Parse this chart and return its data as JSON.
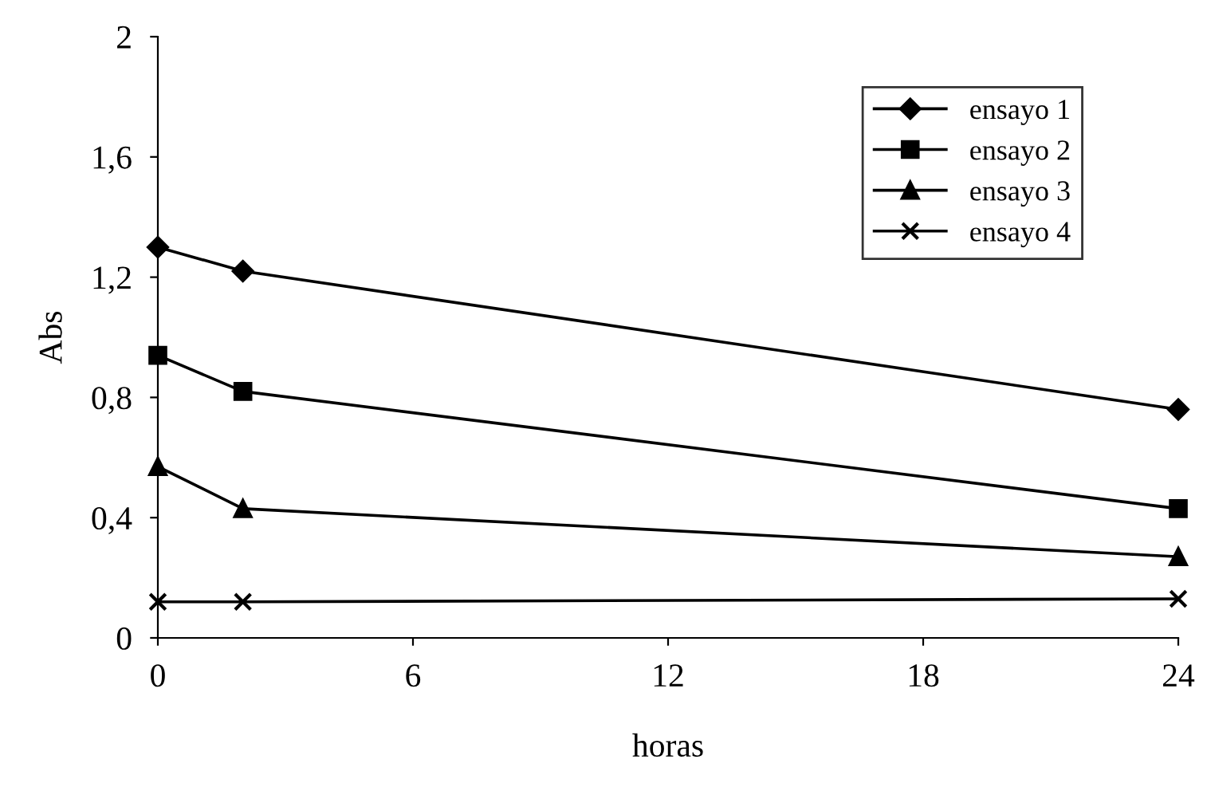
{
  "chart_data": {
    "type": "line",
    "xlabel": "horas",
    "ylabel": "Abs",
    "x": [
      0,
      2,
      24
    ],
    "series": [
      {
        "name": "ensayo 1",
        "color": "#000000",
        "marker": "diamond",
        "values": [
          1.3,
          1.22,
          0.76
        ]
      },
      {
        "name": "ensayo 2",
        "color": "#000000",
        "marker": "square",
        "values": [
          0.94,
          0.82,
          0.43
        ]
      },
      {
        "name": "ensayo 3",
        "color": "#000000",
        "marker": "triangle",
        "values": [
          0.57,
          0.43,
          0.27
        ]
      },
      {
        "name": "ensayo 4",
        "color": "#000000",
        "marker": "cross",
        "values": [
          0.12,
          0.12,
          0.13
        ]
      }
    ],
    "xlim": [
      0,
      24
    ],
    "xticks": [
      0,
      6,
      12,
      18,
      24
    ],
    "ylim": [
      0,
      2
    ],
    "yticks": [
      {
        "value": 0,
        "label": "0"
      },
      {
        "value": 0.4,
        "label": "0,4"
      },
      {
        "value": 0.8,
        "label": "0,8"
      },
      {
        "value": 1.2,
        "label": "1,2"
      },
      {
        "value": 1.6,
        "label": "1,6"
      },
      {
        "value": 2,
        "label": "2"
      }
    ],
    "grid": false,
    "legend": "top right",
    "line_style": "solid"
  }
}
